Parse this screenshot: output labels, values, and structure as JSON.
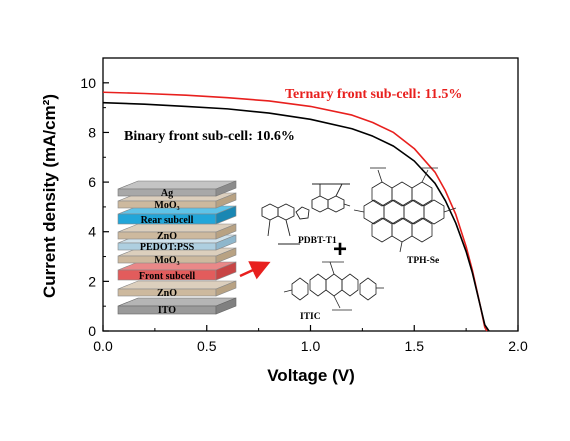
{
  "chart_data": {
    "type": "line",
    "xlabel": "Voltage (V)",
    "ylabel": "Current density (mA/cm²)",
    "xlim": [
      0.0,
      2.0
    ],
    "ylim": [
      0,
      11
    ],
    "x_ticks": [
      "0.0",
      "0.5",
      "1.0",
      "1.5",
      "2.0"
    ],
    "y_ticks": [
      "0",
      "2",
      "4",
      "6",
      "8",
      "10"
    ],
    "grid": false,
    "series": [
      {
        "name": "Ternary front sub-cell: 11.5%",
        "color": "#e8201e",
        "x": [
          0.0,
          0.2,
          0.4,
          0.6,
          0.8,
          1.0,
          1.2,
          1.3,
          1.4,
          1.5,
          1.6,
          1.65,
          1.7,
          1.75,
          1.78,
          1.8,
          1.82,
          1.84,
          1.85
        ],
        "y": [
          9.62,
          9.57,
          9.5,
          9.4,
          9.27,
          9.05,
          8.7,
          8.4,
          8.0,
          7.35,
          6.4,
          5.65,
          4.7,
          3.4,
          2.45,
          1.7,
          0.95,
          0.15,
          0.0
        ]
      },
      {
        "name": "Binary front sub-cell: 10.6%",
        "color": "#000000",
        "x": [
          0.0,
          0.2,
          0.4,
          0.6,
          0.8,
          1.0,
          1.2,
          1.3,
          1.4,
          1.5,
          1.6,
          1.65,
          1.7,
          1.75,
          1.78,
          1.8,
          1.82,
          1.84,
          1.86
        ],
        "y": [
          9.2,
          9.14,
          9.05,
          8.95,
          8.78,
          8.53,
          8.15,
          7.85,
          7.45,
          6.85,
          5.95,
          5.25,
          4.35,
          3.2,
          2.35,
          1.65,
          0.95,
          0.25,
          0.0
        ]
      }
    ],
    "annotations": [
      {
        "text": "Ternary front sub-cell: 11.5%",
        "color": "#e8201e"
      },
      {
        "text": "Binary front sub-cell: 10.6%",
        "color": "#000000"
      }
    ],
    "inset": {
      "device_layers": [
        "Ag",
        "MoO₃",
        "Rear subcell",
        "ZnO",
        "PEDOT:PSS",
        "MoO₃",
        "Front subcell",
        "ZnO",
        "ITO"
      ],
      "molecules": [
        "PDBT-T1",
        "TPH-Se",
        "ITIC"
      ],
      "plus_sign": "+"
    }
  }
}
